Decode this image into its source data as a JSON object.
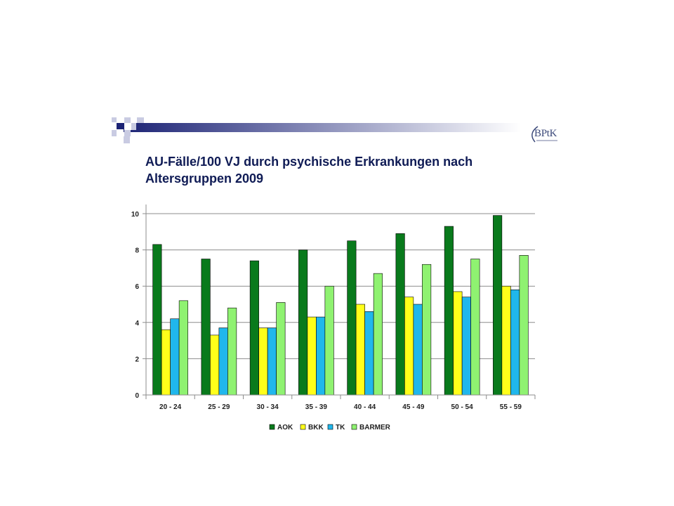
{
  "slide": {
    "title_line1": "AU-Fälle/100 VJ durch psychische Erkrankungen  nach",
    "title_line2": "Altersgruppen 2009",
    "logo": "BPtK"
  },
  "colors": {
    "header_dark": "#1c2375",
    "header_light": "#ffffff",
    "title": "#0f1b55"
  },
  "chart_data": {
    "type": "bar",
    "title": "AU-Fälle/100 VJ durch psychische Erkrankungen  nach Altersgruppen 2009",
    "xlabel": "",
    "ylabel": "",
    "ylim": [
      0,
      10
    ],
    "yticks": [
      "0",
      "2",
      "4",
      "6",
      "8",
      "10"
    ],
    "grid": true,
    "legend_position": "bottom",
    "categories": [
      "20 - 24",
      "25 - 29",
      "30 - 34",
      "35 - 39",
      "40 - 44",
      "45 - 49",
      "50 - 54",
      "55 - 59"
    ],
    "series": [
      {
        "name": "AOK",
        "color": "#097a1c",
        "values": [
          8.3,
          7.5,
          7.4,
          8.0,
          8.5,
          8.9,
          9.3,
          9.9
        ]
      },
      {
        "name": "BKK",
        "color": "#ffff1a",
        "values": [
          3.6,
          3.3,
          3.7,
          4.3,
          5.0,
          5.4,
          5.7,
          6.0
        ]
      },
      {
        "name": "TK",
        "color": "#20b7ec",
        "values": [
          4.2,
          3.7,
          3.7,
          4.3,
          4.6,
          5.0,
          5.4,
          5.8
        ]
      },
      {
        "name": "BARMER",
        "color": "#8ff271",
        "values": [
          5.2,
          4.8,
          5.1,
          6.0,
          6.7,
          7.2,
          7.5,
          7.7
        ]
      }
    ]
  }
}
